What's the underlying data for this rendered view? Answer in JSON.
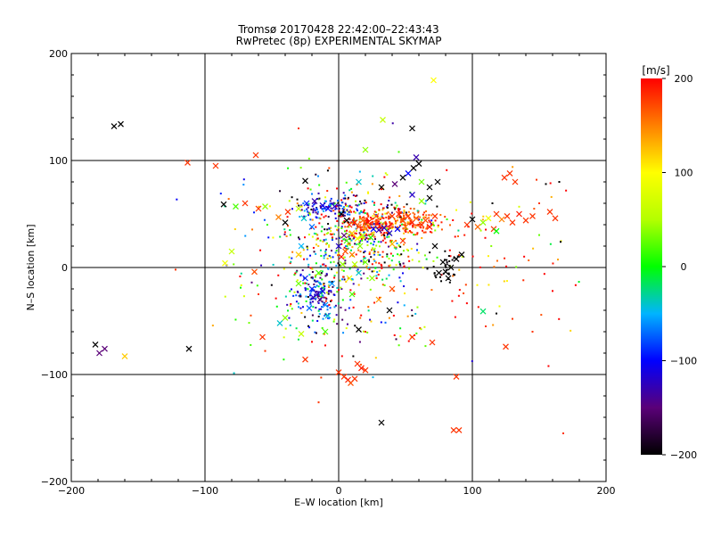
{
  "chart_data": {
    "type": "scatter",
    "title": "Tromsø 20170428 22:42:00–22:43:43",
    "subtitle": "RwPretec (8p) EXPERIMENTAL SKYMAP",
    "xlabel": "E–W location [km]",
    "ylabel": "N–S location [km]",
    "xlim": [
      -200,
      200
    ],
    "ylim": [
      -200,
      200
    ],
    "xticks": [
      -200,
      -100,
      0,
      100,
      200
    ],
    "yticks": [
      -200,
      -100,
      0,
      100,
      200
    ],
    "xtick_labels": [
      "−200",
      "−100",
      "0",
      "100",
      "200"
    ],
    "ytick_labels": [
      "−200",
      "−100",
      "0",
      "100",
      "200"
    ],
    "grid": true,
    "colorbar": {
      "label": "[m/s]",
      "min": -200,
      "max": 200,
      "ticks": [
        200,
        100,
        0,
        -100,
        -200
      ],
      "tick_labels": [
        "200",
        "100",
        "0",
        "−100",
        "−200"
      ],
      "colormap": "rainbow (black → purple → blue → cyan → green → yellow → orange → red)"
    },
    "points": [
      {
        "x": -182,
        "y": -72,
        "v": -200,
        "m": "x"
      },
      {
        "x": -179,
        "y": -80,
        "v": -150,
        "m": "x"
      },
      {
        "x": -175,
        "y": -76,
        "v": -150,
        "m": "x"
      },
      {
        "x": -160,
        "y": -83,
        "v": 120,
        "m": "x"
      },
      {
        "x": -112,
        "y": -76,
        "v": -200,
        "m": "x"
      },
      {
        "x": -168,
        "y": 132,
        "v": -200,
        "m": "x"
      },
      {
        "x": -163,
        "y": 134,
        "v": -200,
        "m": "x"
      },
      {
        "x": -113,
        "y": 98,
        "v": 180,
        "m": "x"
      },
      {
        "x": -92,
        "y": 95,
        "v": 180,
        "m": "x"
      },
      {
        "x": -62,
        "y": 105,
        "v": 180,
        "m": "x"
      },
      {
        "x": -30,
        "y": 130,
        "v": 180,
        "m": "."
      },
      {
        "x": -86,
        "y": 59,
        "v": -200,
        "m": "x"
      },
      {
        "x": -77,
        "y": 57,
        "v": 20,
        "m": "x"
      },
      {
        "x": -70,
        "y": 60,
        "v": 180,
        "m": "x"
      },
      {
        "x": -60,
        "y": 55,
        "v": 180,
        "m": "x"
      },
      {
        "x": -55,
        "y": 57,
        "v": 40,
        "m": "x"
      },
      {
        "x": -45,
        "y": 47,
        "v": 150,
        "m": "x"
      },
      {
        "x": -38,
        "y": 52,
        "v": 180,
        "m": "x"
      },
      {
        "x": -30,
        "y": 55,
        "v": 60,
        "m": "x"
      },
      {
        "x": -80,
        "y": 15,
        "v": 60,
        "m": "x"
      },
      {
        "x": -85,
        "y": 4,
        "v": 90,
        "m": "x"
      },
      {
        "x": -122,
        "y": -2,
        "v": 180,
        "m": "."
      },
      {
        "x": -63,
        "y": -4,
        "v": 170,
        "m": "x"
      },
      {
        "x": -65,
        "y": -14,
        "v": -150,
        "m": "."
      },
      {
        "x": -60,
        "y": -25,
        "v": 180,
        "m": "."
      },
      {
        "x": -57,
        "y": -65,
        "v": 180,
        "m": "x"
      },
      {
        "x": -55,
        "y": -78,
        "v": 180,
        "m": "."
      },
      {
        "x": -44,
        "y": -52,
        "v": -40,
        "m": "x"
      },
      {
        "x": -40,
        "y": -47,
        "v": 40,
        "m": "x"
      },
      {
        "x": -28,
        "y": -62,
        "v": 60,
        "m": "x"
      },
      {
        "x": -25,
        "y": -86,
        "v": 180,
        "m": "x"
      },
      {
        "x": -15,
        "y": -126,
        "v": 180,
        "m": "."
      },
      {
        "x": -10,
        "y": -60,
        "v": 20,
        "m": "x"
      },
      {
        "x": -14,
        "y": -30,
        "v": -150,
        "m": "x"
      },
      {
        "x": -16,
        "y": -25,
        "v": -130,
        "m": "x"
      },
      {
        "x": -19,
        "y": -28,
        "v": -120,
        "m": "x"
      },
      {
        "x": -12,
        "y": -22,
        "v": -110,
        "m": "x"
      },
      {
        "x": -20,
        "y": -20,
        "v": -90,
        "m": "x"
      },
      {
        "x": -10,
        "y": -35,
        "v": -60,
        "m": "x"
      },
      {
        "x": -22,
        "y": -38,
        "v": -70,
        "m": "x"
      },
      {
        "x": -8,
        "y": -45,
        "v": -40,
        "m": "x"
      },
      {
        "x": -25,
        "y": -10,
        "v": -90,
        "m": "x"
      },
      {
        "x": -30,
        "y": -15,
        "v": 30,
        "m": "x"
      },
      {
        "x": -5,
        "y": -15,
        "v": -60,
        "m": "x"
      },
      {
        "x": -15,
        "y": -5,
        "v": 20,
        "m": "x"
      },
      {
        "x": -18,
        "y": 62,
        "v": -130,
        "m": "x"
      },
      {
        "x": -12,
        "y": 58,
        "v": -110,
        "m": "x"
      },
      {
        "x": -8,
        "y": 55,
        "v": -100,
        "m": "x"
      },
      {
        "x": -3,
        "y": 57,
        "v": -120,
        "m": "x"
      },
      {
        "x": -24,
        "y": 60,
        "v": -90,
        "m": "x"
      },
      {
        "x": -26,
        "y": 46,
        "v": -40,
        "m": "x"
      },
      {
        "x": -20,
        "y": 38,
        "v": -70,
        "m": "x"
      },
      {
        "x": -25,
        "y": 81,
        "v": -200,
        "m": "x"
      },
      {
        "x": -40,
        "y": 42,
        "v": -200,
        "m": "x"
      },
      {
        "x": -30,
        "y": 28,
        "v": -200,
        "m": "."
      },
      {
        "x": -28,
        "y": 20,
        "v": -50,
        "m": "x"
      },
      {
        "x": -30,
        "y": 12,
        "v": 120,
        "m": "x"
      },
      {
        "x": 2,
        "y": 50,
        "v": -200,
        "m": "x"
      },
      {
        "x": 6,
        "y": 44,
        "v": -200,
        "m": "x"
      },
      {
        "x": 4,
        "y": 30,
        "v": -150,
        "m": "x"
      },
      {
        "x": 0,
        "y": 20,
        "v": -120,
        "m": "x"
      },
      {
        "x": 8,
        "y": 40,
        "v": 180,
        "m": "x"
      },
      {
        "x": 12,
        "y": 42,
        "v": 190,
        "m": "x"
      },
      {
        "x": 15,
        "y": 38,
        "v": 170,
        "m": "x"
      },
      {
        "x": 18,
        "y": 44,
        "v": 160,
        "m": "x"
      },
      {
        "x": 20,
        "y": 36,
        "v": 140,
        "m": "x"
      },
      {
        "x": 22,
        "y": 42,
        "v": 190,
        "m": "x"
      },
      {
        "x": 10,
        "y": 32,
        "v": 120,
        "m": "x"
      },
      {
        "x": 14,
        "y": 27,
        "v": 90,
        "m": "x"
      },
      {
        "x": 18,
        "y": 30,
        "v": 60,
        "m": "x"
      },
      {
        "x": 16,
        "y": 20,
        "v": 40,
        "m": "x"
      },
      {
        "x": 6,
        "y": 25,
        "v": 20,
        "m": "x"
      },
      {
        "x": 24,
        "y": 28,
        "v": 10,
        "m": "x"
      },
      {
        "x": 26,
        "y": 36,
        "v": -100,
        "m": "x"
      },
      {
        "x": 30,
        "y": 35,
        "v": -130,
        "m": "x"
      },
      {
        "x": 34,
        "y": 37,
        "v": -120,
        "m": "x"
      },
      {
        "x": 28,
        "y": 48,
        "v": 160,
        "m": "x"
      },
      {
        "x": 2,
        "y": 10,
        "v": 190,
        "m": "x"
      },
      {
        "x": 5,
        "y": 15,
        "v": 170,
        "m": "x"
      },
      {
        "x": 10,
        "y": 12,
        "v": 150,
        "m": "x"
      },
      {
        "x": 3,
        "y": 3,
        "v": 40,
        "m": "x"
      },
      {
        "x": 12,
        "y": 3,
        "v": 50,
        "m": "x"
      },
      {
        "x": 20,
        "y": 5,
        "v": 30,
        "m": "x"
      },
      {
        "x": 8,
        "y": -10,
        "v": 90,
        "m": "x"
      },
      {
        "x": 15,
        "y": -5,
        "v": -40,
        "m": "x"
      },
      {
        "x": 25,
        "y": -10,
        "v": 40,
        "m": "x"
      },
      {
        "x": 10,
        "y": -25,
        "v": 20,
        "m": "x"
      },
      {
        "x": 30,
        "y": -30,
        "v": 140,
        "m": "x"
      },
      {
        "x": 40,
        "y": -20,
        "v": 170,
        "m": "x"
      },
      {
        "x": 38,
        "y": -40,
        "v": -200,
        "m": "x"
      },
      {
        "x": 20,
        "y": -60,
        "v": 180,
        "m": "."
      },
      {
        "x": 15,
        "y": -58,
        "v": -200,
        "m": "x"
      },
      {
        "x": 55,
        "y": -65,
        "v": 180,
        "m": "x"
      },
      {
        "x": 70,
        "y": -70,
        "v": 180,
        "m": "x"
      },
      {
        "x": 55,
        "y": -45,
        "v": -200,
        "m": "."
      },
      {
        "x": 0,
        "y": -98,
        "v": 180,
        "m": "x"
      },
      {
        "x": 4,
        "y": -102,
        "v": 180,
        "m": "x"
      },
      {
        "x": 7,
        "y": -105,
        "v": 190,
        "m": "x"
      },
      {
        "x": 9,
        "y": -108,
        "v": 170,
        "m": "x"
      },
      {
        "x": 12,
        "y": -104,
        "v": 180,
        "m": "x"
      },
      {
        "x": 14,
        "y": -90,
        "v": 180,
        "m": "x"
      },
      {
        "x": 17,
        "y": -94,
        "v": 190,
        "m": "x"
      },
      {
        "x": 20,
        "y": -96,
        "v": 180,
        "m": "x"
      },
      {
        "x": 32,
        "y": -145,
        "v": -200,
        "m": "x"
      },
      {
        "x": 88,
        "y": -102,
        "v": 180,
        "m": "x"
      },
      {
        "x": 86,
        "y": -152,
        "v": 180,
        "m": "x"
      },
      {
        "x": 90,
        "y": -152,
        "v": 180,
        "m": "x"
      },
      {
        "x": 168,
        "y": -155,
        "v": 180,
        "m": "."
      },
      {
        "x": 108,
        "y": -41,
        "v": -20,
        "m": "x"
      },
      {
        "x": 118,
        "y": -43,
        "v": -200,
        "m": "."
      },
      {
        "x": 125,
        "y": -74,
        "v": 180,
        "m": "x"
      },
      {
        "x": 130,
        "y": -48,
        "v": 180,
        "m": "."
      },
      {
        "x": 145,
        "y": -60,
        "v": 180,
        "m": "."
      },
      {
        "x": 110,
        "y": -55,
        "v": 180,
        "m": "."
      },
      {
        "x": 71,
        "y": 175,
        "v": 100,
        "m": "x"
      },
      {
        "x": 33,
        "y": 138,
        "v": 60,
        "m": "x"
      },
      {
        "x": 55,
        "y": 130,
        "v": -200,
        "m": "x"
      },
      {
        "x": 20,
        "y": 110,
        "v": 40,
        "m": "x"
      },
      {
        "x": 45,
        "y": 108,
        "v": 20,
        "m": "."
      },
      {
        "x": 58,
        "y": 103,
        "v": -130,
        "m": "x"
      },
      {
        "x": 60,
        "y": 97,
        "v": -200,
        "m": "x"
      },
      {
        "x": 56,
        "y": 93,
        "v": -200,
        "m": "x"
      },
      {
        "x": 52,
        "y": 88,
        "v": -100,
        "m": "x"
      },
      {
        "x": 48,
        "y": 84,
        "v": -200,
        "m": "x"
      },
      {
        "x": 42,
        "y": 78,
        "v": -150,
        "m": "x"
      },
      {
        "x": 62,
        "y": 80,
        "v": 30,
        "m": "x"
      },
      {
        "x": 68,
        "y": 75,
        "v": -200,
        "m": "x"
      },
      {
        "x": 74,
        "y": 80,
        "v": -200,
        "m": "x"
      },
      {
        "x": 55,
        "y": 68,
        "v": -120,
        "m": "x"
      },
      {
        "x": 62,
        "y": 62,
        "v": 40,
        "m": "x"
      },
      {
        "x": 68,
        "y": 65,
        "v": -200,
        "m": "x"
      },
      {
        "x": 32,
        "y": 75,
        "v": -200,
        "m": "x"
      },
      {
        "x": 15,
        "y": 80,
        "v": -40,
        "m": "x"
      },
      {
        "x": 40,
        "y": 48,
        "v": 180,
        "m": "x"
      },
      {
        "x": 45,
        "y": 50,
        "v": 190,
        "m": "x"
      },
      {
        "x": 48,
        "y": 44,
        "v": 170,
        "m": "x"
      },
      {
        "x": 52,
        "y": 48,
        "v": 180,
        "m": "x"
      },
      {
        "x": 55,
        "y": 42,
        "v": 190,
        "m": "x"
      },
      {
        "x": 58,
        "y": 46,
        "v": 160,
        "m": "x"
      },
      {
        "x": 62,
        "y": 40,
        "v": 180,
        "m": "x"
      },
      {
        "x": 65,
        "y": 44,
        "v": 170,
        "m": "x"
      },
      {
        "x": 68,
        "y": 38,
        "v": 190,
        "m": "x"
      },
      {
        "x": 50,
        "y": 38,
        "v": 150,
        "m": "x"
      },
      {
        "x": 44,
        "y": 36,
        "v": -100,
        "m": "x"
      },
      {
        "x": 38,
        "y": 32,
        "v": -120,
        "m": "x"
      },
      {
        "x": 40,
        "y": 22,
        "v": 130,
        "m": "x"
      },
      {
        "x": 48,
        "y": 25,
        "v": 180,
        "m": "x"
      },
      {
        "x": 72,
        "y": 48,
        "v": 180,
        "m": "x"
      },
      {
        "x": 72,
        "y": 20,
        "v": -200,
        "m": "x"
      },
      {
        "x": 78,
        "y": 5,
        "v": -200,
        "m": "x"
      },
      {
        "x": 80,
        "y": -4,
        "v": -200,
        "m": "x"
      },
      {
        "x": 75,
        "y": -5,
        "v": -200,
        "m": "x"
      },
      {
        "x": 84,
        "y": 0,
        "v": -200,
        "m": "x"
      },
      {
        "x": 88,
        "y": 8,
        "v": -200,
        "m": "x"
      },
      {
        "x": 82,
        "y": -10,
        "v": -200,
        "m": "x"
      },
      {
        "x": 92,
        "y": 12,
        "v": -200,
        "m": "x"
      },
      {
        "x": 96,
        "y": 40,
        "v": 180,
        "m": "x"
      },
      {
        "x": 100,
        "y": 45,
        "v": -200,
        "m": "x"
      },
      {
        "x": 104,
        "y": 38,
        "v": 160,
        "m": "x"
      },
      {
        "x": 108,
        "y": 42,
        "v": 40,
        "m": "x"
      },
      {
        "x": 112,
        "y": 46,
        "v": 90,
        "m": "x"
      },
      {
        "x": 116,
        "y": 36,
        "v": 180,
        "m": "x"
      },
      {
        "x": 118,
        "y": 50,
        "v": 180,
        "m": "x"
      },
      {
        "x": 122,
        "y": 45,
        "v": 150,
        "m": "x"
      },
      {
        "x": 126,
        "y": 48,
        "v": 180,
        "m": "x"
      },
      {
        "x": 130,
        "y": 42,
        "v": 180,
        "m": "x"
      },
      {
        "x": 135,
        "y": 50,
        "v": 190,
        "m": "x"
      },
      {
        "x": 140,
        "y": 44,
        "v": 180,
        "m": "x"
      },
      {
        "x": 145,
        "y": 48,
        "v": 180,
        "m": "x"
      },
      {
        "x": 158,
        "y": 52,
        "v": 180,
        "m": "x"
      },
      {
        "x": 162,
        "y": 46,
        "v": 180,
        "m": "x"
      },
      {
        "x": 118,
        "y": 34,
        "v": 0,
        "m": "x"
      },
      {
        "x": 124,
        "y": 84,
        "v": 180,
        "m": "x"
      },
      {
        "x": 128,
        "y": 88,
        "v": 180,
        "m": "x"
      },
      {
        "x": 132,
        "y": 80,
        "v": 180,
        "m": "x"
      },
      {
        "x": 148,
        "y": 82,
        "v": 180,
        "m": "."
      },
      {
        "x": 155,
        "y": 78,
        "v": -200,
        "m": "."
      },
      {
        "x": 165,
        "y": 80,
        "v": -200,
        "m": "."
      },
      {
        "x": 166,
        "y": 24,
        "v": -200,
        "m": "."
      },
      {
        "x": 115,
        "y": 60,
        "v": -200,
        "m": "."
      },
      {
        "x": 150,
        "y": 60,
        "v": 180,
        "m": "."
      }
    ],
    "scatter_fill": {
      "description": "dense small dot markers around the center",
      "clusters": [
        {
          "cx": 15,
          "cy": 30,
          "sx": 22,
          "sy": 22,
          "n": 380,
          "vmean": 40,
          "vspread": 150
        },
        {
          "cx": -15,
          "cy": -28,
          "sx": 12,
          "sy": 15,
          "n": 160,
          "vmean": -90,
          "vspread": 60
        },
        {
          "cx": 55,
          "cy": 42,
          "sx": 10,
          "sy": 7,
          "n": 130,
          "vmean": 170,
          "vspread": 25
        },
        {
          "cx": -5,
          "cy": 55,
          "sx": 14,
          "sy": 5,
          "n": 90,
          "vmean": -110,
          "vspread": 40
        },
        {
          "cx": 25,
          "cy": 40,
          "sx": 8,
          "sy": 6,
          "n": 110,
          "vmean": 185,
          "vspread": 15
        },
        {
          "cx": 0,
          "cy": 0,
          "sx": 40,
          "sy": 45,
          "n": 260,
          "vmean": 40,
          "vspread": 140
        },
        {
          "cx": 90,
          "cy": 15,
          "sx": 55,
          "sy": 40,
          "n": 110,
          "vmean": 150,
          "vspread": 90
        },
        {
          "cx": 80,
          "cy": 0,
          "sx": 8,
          "sy": 8,
          "n": 30,
          "vmean": -200,
          "vspread": 5
        }
      ]
    }
  }
}
